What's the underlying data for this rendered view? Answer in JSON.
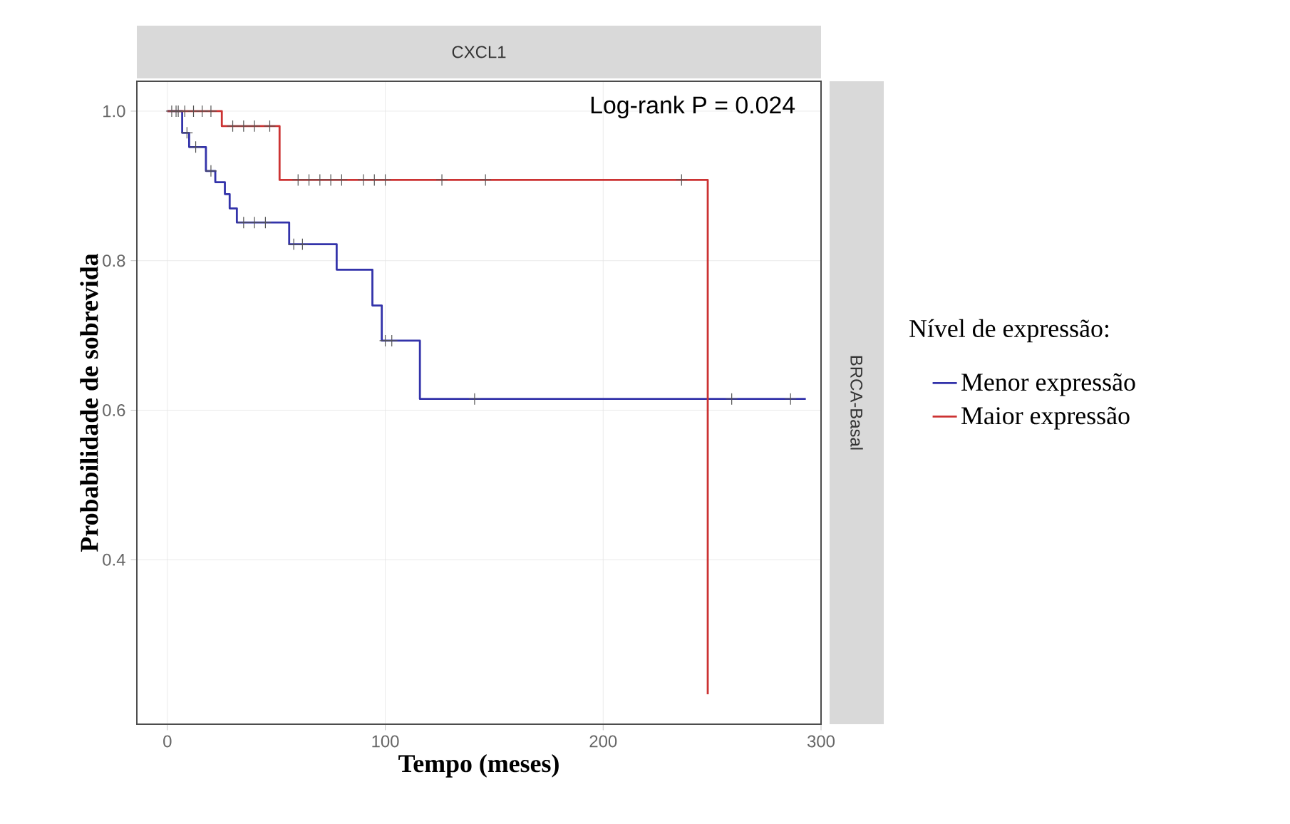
{
  "chart_data": {
    "type": "step",
    "title": "CXCL1",
    "xlabel": "Tempo (meses)",
    "ylabel": "Probabilidade de sobrevida",
    "legend_title": "Nível de expressão:",
    "annotations": [
      "Log-rank P = 0.024",
      "BRCA-Basal"
    ],
    "xlim": [
      -14,
      300
    ],
    "ylim": [
      0.18,
      1.04
    ],
    "xticks": [
      0,
      100,
      200,
      300
    ],
    "yticks": [
      {
        "value": 0.4,
        "label": "0.4"
      },
      {
        "value": 0.6,
        "label": "0.6"
      },
      {
        "value": 0.8,
        "label": "0.8"
      },
      {
        "value": 1.0,
        "label": "1.0"
      }
    ],
    "grid": true,
    "legend": "right",
    "line_style": "solid",
    "series": [
      {
        "name": "Menor expressão",
        "color": "#3333aa",
        "x": [
          0,
          6.8,
          10,
          17.7,
          22,
          26.4,
          28.6,
          31.9,
          55.9,
          77.7,
          94.1,
          98.4,
          115.9,
          293
        ],
        "values": [
          1.0,
          0.971,
          0.952,
          0.92,
          0.905,
          0.889,
          0.87,
          0.851,
          0.822,
          0.788,
          0.74,
          0.693,
          0.615,
          0.615
        ]
      },
      {
        "name": "Maior expressão",
        "color": "#cc3333",
        "x": [
          0,
          25,
          51.5,
          248,
          248
        ],
        "values": [
          1.0,
          0.98,
          0.908,
          0.908,
          0.22
        ]
      },
      {
        "type": "scatter",
        "marker": "cross",
        "color": "#555555",
        "x": [
          2,
          5,
          9,
          13,
          20,
          35,
          40,
          45,
          58,
          62,
          100,
          103,
          141,
          259,
          286
        ],
        "values": [
          1.0,
          1.0,
          0.971,
          0.952,
          0.92,
          0.851,
          0.851,
          0.851,
          0.822,
          0.822,
          0.693,
          0.693,
          0.615,
          0.615,
          0.615
        ]
      },
      {
        "type": "scatter",
        "marker": "cross",
        "color": "#555555",
        "x": [
          4,
          8,
          12,
          16,
          20,
          30,
          35,
          40,
          47,
          60,
          65,
          70,
          75,
          80,
          90,
          95,
          100,
          126,
          146,
          236
        ],
        "values": [
          1.0,
          1.0,
          1.0,
          1.0,
          1.0,
          0.98,
          0.98,
          0.98,
          0.98,
          0.908,
          0.908,
          0.908,
          0.908,
          0.908,
          0.908,
          0.908,
          0.908,
          0.908,
          0.908,
          0.908
        ]
      }
    ]
  }
}
